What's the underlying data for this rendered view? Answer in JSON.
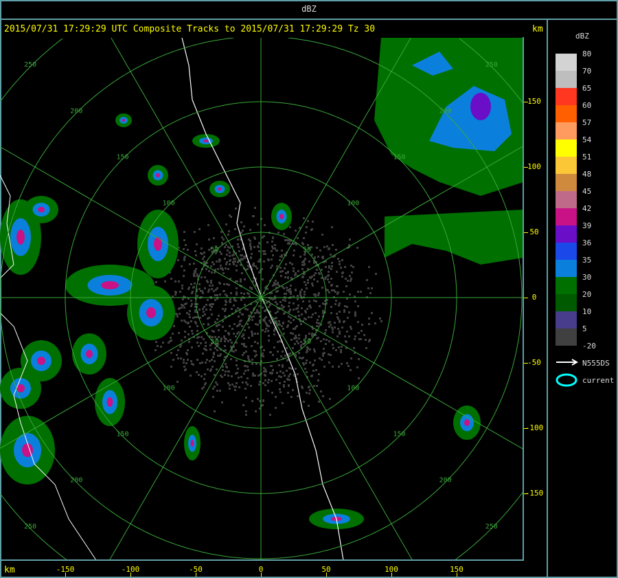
{
  "window": {
    "title": "dBZ"
  },
  "header": {
    "text": "2015/07/31 17:29:29 UTC Composite Tracks to 2015/07/31 17:29:29 Tz 30",
    "unit": "km"
  },
  "axes": {
    "x_unit": "km",
    "x_ticks": [
      "-150",
      "-100",
      "-50",
      "0",
      "50",
      "100",
      "150"
    ],
    "y_ticks": [
      "150",
      "100",
      "50",
      "0",
      "-50",
      "-100",
      "-150"
    ],
    "range_rings_km": [
      50,
      100,
      150,
      200,
      250
    ],
    "ring_labels": [
      "50",
      "100",
      "150",
      "200",
      "250"
    ],
    "spoke_interval_deg": 30
  },
  "legend": {
    "title": "dBZ",
    "bins": [
      {
        "label": "80",
        "color": "#d3d3d3"
      },
      {
        "label": "70",
        "color": "#bebebe"
      },
      {
        "label": "65",
        "color": "#ff3720"
      },
      {
        "label": "60",
        "color": "#ff5f00"
      },
      {
        "label": "57",
        "color": "#ff9b5f"
      },
      {
        "label": "54",
        "color": "#ffff00"
      },
      {
        "label": "51",
        "color": "#fcc737"
      },
      {
        "label": "48",
        "color": "#d08a3e"
      },
      {
        "label": "45",
        "color": "#c06a8a"
      },
      {
        "label": "42",
        "color": "#c81285"
      },
      {
        "label": "39",
        "color": "#6a0ec8"
      },
      {
        "label": "36",
        "color": "#1b48e8"
      },
      {
        "label": "35",
        "color": "#0a80dc"
      },
      {
        "label": "30",
        "color": "#007000"
      },
      {
        "label": "20",
        "color": "#005a00"
      },
      {
        "label": "10",
        "color": "#483c8c"
      },
      {
        "label": "5",
        "color": "#404040"
      }
    ],
    "bottom_label": "-20",
    "track_label": "N555DS",
    "current_label": "current",
    "current_color": "#00ffff"
  },
  "colors": {
    "border": "#5fa0a8",
    "grid": "#3aa83a",
    "axis_text": "#ffff00",
    "coast": "#ffffff"
  }
}
